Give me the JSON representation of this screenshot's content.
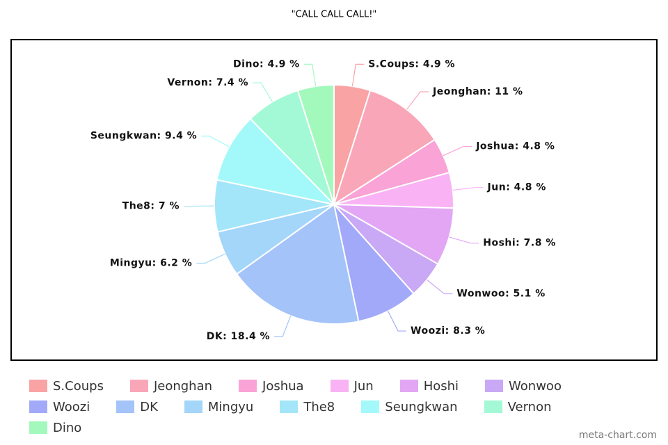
{
  "chart_data": {
    "type": "pie",
    "title": "\"CALL CALL CALL!\"",
    "categories": [
      "S.Coups",
      "Jeonghan",
      "Joshua",
      "Jun",
      "Hoshi",
      "Wonwoo",
      "Woozi",
      "DK",
      "Mingyu",
      "The8",
      "Seungkwan",
      "Vernon",
      "Dino"
    ],
    "values": [
      4.9,
      11,
      4.8,
      4.8,
      7.8,
      5.1,
      8.3,
      18.4,
      6.2,
      7,
      9.4,
      7.4,
      4.9
    ],
    "value_labels": [
      "S.Coups: 4.9 %",
      "Jeonghan: 11 %",
      "Joshua: 4.8 %",
      "Jun: 4.8 %",
      "Hoshi: 7.8 %",
      "Wonwoo: 5.1 %",
      "Woozi: 8.3 %",
      "DK: 18.4 %",
      "Mingyu: 6.2 %",
      "The8: 7 %",
      "Seungkwan: 9.4 %",
      "Vernon: 7.4 %",
      "Dino: 4.9 %"
    ],
    "colors": [
      "#f9a3a4",
      "#f9a6b9",
      "#f9a3d6",
      "#f9b3f5",
      "#e3a6f5",
      "#c9a8f5",
      "#a3a9f9",
      "#a3c3f9",
      "#a3d6f9",
      "#a3e6f9",
      "#a3f9f9",
      "#a3f9d6",
      "#a3f9bc"
    ],
    "legend": "bottom",
    "watermark": "meta-chart.com"
  }
}
